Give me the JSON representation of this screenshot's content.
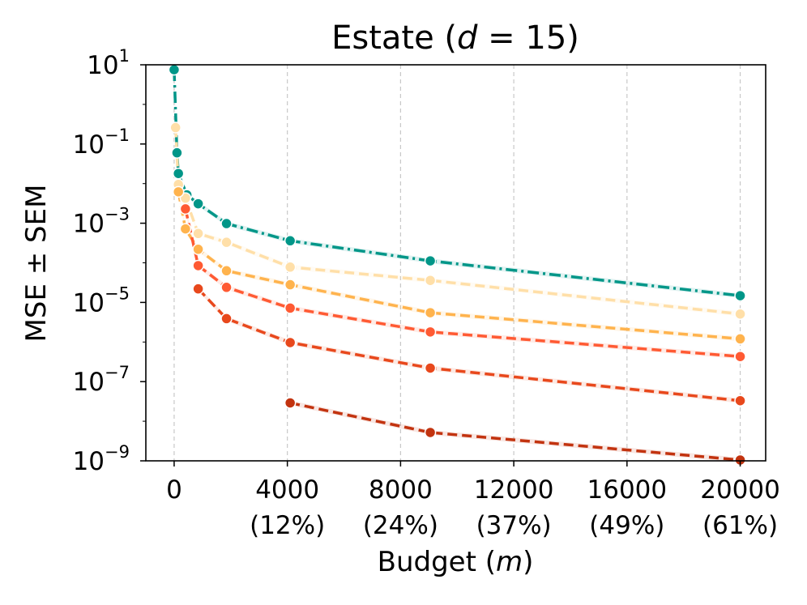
{
  "chart_data": {
    "type": "line",
    "title_prefix": "Estate (",
    "title_var": "d",
    "title_suffix": " = 15)",
    "xlabel_prefix": "Budget (",
    "xlabel_var": "m",
    "xlabel_suffix": ")",
    "ylabel": "MSE ± SEM",
    "yscale": "log",
    "xlim": [
      -1000,
      20900
    ],
    "ylim": [
      1e-09,
      10
    ],
    "grid": "x-dashed",
    "xticks": [
      {
        "value": 0,
        "label": "0",
        "sublabel": ""
      },
      {
        "value": 4000,
        "label": "4000",
        "sublabel": "(12%)"
      },
      {
        "value": 8000,
        "label": "8000",
        "sublabel": "(24%)"
      },
      {
        "value": 12000,
        "label": "12000",
        "sublabel": "(37%)"
      },
      {
        "value": 16000,
        "label": "16000",
        "sublabel": "(49%)"
      },
      {
        "value": 20000,
        "label": "20000",
        "sublabel": "(61%)"
      }
    ],
    "yticks": [
      {
        "value": 10,
        "base": "10",
        "exp": "1"
      },
      {
        "value": 0.1,
        "base": "10",
        "exp": "−1"
      },
      {
        "value": 0.001,
        "base": "10",
        "exp": "−3"
      },
      {
        "value": 1e-05,
        "base": "10",
        "exp": "−5"
      },
      {
        "value": 1e-07,
        "base": "10",
        "exp": "−7"
      },
      {
        "value": 1e-09,
        "base": "10",
        "exp": "−9"
      }
    ],
    "series": [
      {
        "color": "#009688",
        "dash": "dashdot",
        "x": [
          0,
          100,
          150,
          450,
          850,
          1850,
          4100,
          9050,
          20000
        ],
        "y": [
          7.5,
          0.06,
          0.018,
          0.0052,
          0.0031,
          0.00098,
          0.00036,
          0.000112,
          1.48e-05
        ]
      },
      {
        "color": "#FFDFA8",
        "dash": "dashed",
        "x": [
          50,
          150,
          400,
          850,
          1850,
          4100,
          9050,
          20000
        ],
        "y": [
          0.26,
          0.0095,
          0.0043,
          0.00055,
          0.00033,
          7.8e-05,
          3.6e-05,
          5.1e-06
        ]
      },
      {
        "color": "#FFB34D",
        "dash": "dashed",
        "x": [
          150,
          400,
          850,
          1850,
          4100,
          9050,
          20000
        ],
        "y": [
          0.0062,
          0.00072,
          0.00022,
          6.3e-05,
          2.8e-05,
          5.5e-06,
          1.2e-06
        ]
      },
      {
        "color": "#FF5A33",
        "dash": "dashed",
        "x": [
          400,
          850,
          1850,
          4100,
          9050,
          20000
        ],
        "y": [
          0.0023,
          8.5e-05,
          2.4e-05,
          7.2e-06,
          1.8e-06,
          4.3e-07
        ]
      },
      {
        "color": "#E8481C",
        "dash": "dashed",
        "x": [
          850,
          1850,
          4100,
          9050,
          20000
        ],
        "y": [
          2.2e-05,
          3.9e-06,
          9.7e-07,
          2.2e-07,
          3.3e-08
        ]
      },
      {
        "color": "#C2330F",
        "dash": "dashed",
        "x": [
          4100,
          9050,
          20000
        ],
        "y": [
          2.9e-08,
          5.2e-09,
          1.05e-09
        ]
      }
    ]
  }
}
